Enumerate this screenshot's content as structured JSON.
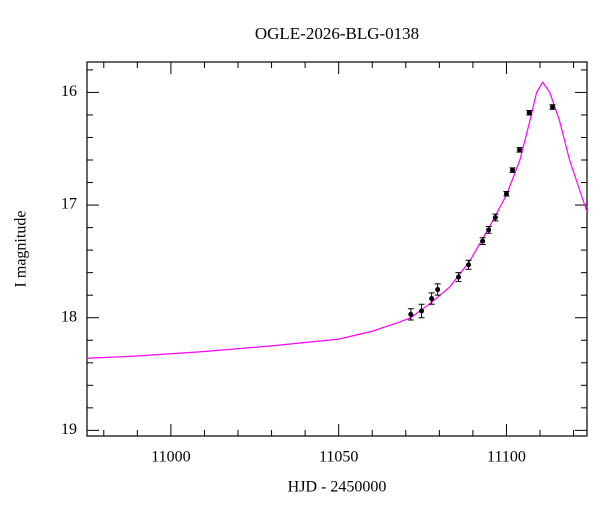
{
  "chart_data": {
    "type": "scatter",
    "title": "OGLE-2026-BLG-0138",
    "x_label": "HJD - 2450000",
    "y_label": "I magnitude",
    "xlim": [
      10975,
      11124
    ],
    "ylim": [
      15.73,
      19.05
    ],
    "y_inverted": true,
    "xticks": [
      11000,
      11050,
      11100
    ],
    "yticks": [
      16,
      17,
      18,
      19
    ],
    "xminorticks": [
      10980,
      10990,
      11010,
      11020,
      11030,
      11040,
      11060,
      11070,
      11080,
      11090,
      11110,
      11120
    ],
    "yminorticks": [
      15.8,
      16.2,
      16.4,
      16.6,
      16.8,
      17.2,
      17.4,
      17.6,
      17.8,
      18.2,
      18.4,
      18.6,
      18.8
    ],
    "points": {
      "color": "#000000",
      "x": [
        11071.5,
        11074.7,
        11077.7,
        11079.5,
        11085.7,
        11088.7,
        11092.9,
        11094.7,
        11096.7,
        11100.0,
        11101.8,
        11103.9,
        11106.8,
        11113.7
      ],
      "values": [
        17.97,
        17.94,
        17.83,
        17.75,
        17.64,
        17.53,
        17.32,
        17.22,
        17.11,
        16.9,
        16.69,
        16.51,
        16.18,
        16.13
      ],
      "errors": [
        0.05,
        0.06,
        0.05,
        0.05,
        0.04,
        0.04,
        0.03,
        0.03,
        0.03,
        0.02,
        0.02,
        0.02,
        0.02,
        0.02
      ]
    },
    "model": {
      "color": "#ff00ff",
      "x": [
        10975,
        10990,
        11000,
        11010,
        11030,
        11050,
        11060,
        11068,
        11071.5,
        11077,
        11083,
        11089,
        11095,
        11100,
        11104,
        11107,
        11109,
        11110.8,
        11112.9,
        11115.8,
        11118.8,
        11124
      ],
      "values": [
        18.36,
        18.34,
        18.32,
        18.3,
        18.25,
        18.19,
        18.12,
        18.04,
        18.0,
        17.88,
        17.73,
        17.5,
        17.19,
        16.91,
        16.6,
        16.25,
        16.0,
        15.91,
        16.0,
        16.25,
        16.6,
        17.06
      ]
    }
  }
}
